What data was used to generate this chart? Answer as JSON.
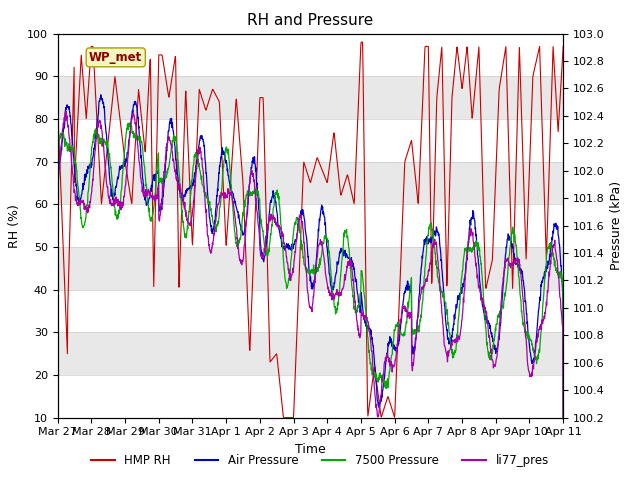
{
  "title": "RH and Pressure",
  "xlabel": "Time",
  "ylabel_left": "RH (%)",
  "ylabel_right": "Pressure (kPa)",
  "ylim_left": [
    10,
    100
  ],
  "ylim_right": [
    100.2,
    103.0
  ],
  "x_tick_labels": [
    "Mar 27",
    "Mar 28",
    "Mar 29",
    "Mar 30",
    "Mar 31",
    "Apr 1",
    "Apr 2",
    "Apr 3",
    "Apr 4",
    "Apr 5",
    "Apr 6",
    "Apr 7",
    "Apr 8",
    "Apr 9",
    "Apr 10",
    "Apr 11"
  ],
  "wp_met_label": "WP_met",
  "legend_items": [
    {
      "label": "HMP RH",
      "color": "#cc0000"
    },
    {
      "label": "Air Pressure",
      "color": "#0000cc"
    },
    {
      "label": "7500 Pressure",
      "color": "#00aa00"
    },
    {
      "label": "li77_pres",
      "color": "#aa00aa"
    }
  ],
  "bg_color": "#ffffff",
  "band_ranges": [
    [
      80,
      90
    ],
    [
      60,
      70
    ],
    [
      40,
      50
    ],
    [
      20,
      30
    ]
  ],
  "band_color": "#e8e8e8",
  "title_fontsize": 11,
  "label_fontsize": 9,
  "tick_fontsize": 8,
  "yticks_left": [
    10,
    20,
    30,
    40,
    50,
    60,
    70,
    80,
    90,
    100
  ],
  "yticks_right": [
    100.2,
    100.4,
    100.6,
    100.8,
    101.0,
    101.2,
    101.4,
    101.6,
    101.8,
    102.0,
    102.2,
    102.4,
    102.6,
    102.8,
    103.0
  ]
}
